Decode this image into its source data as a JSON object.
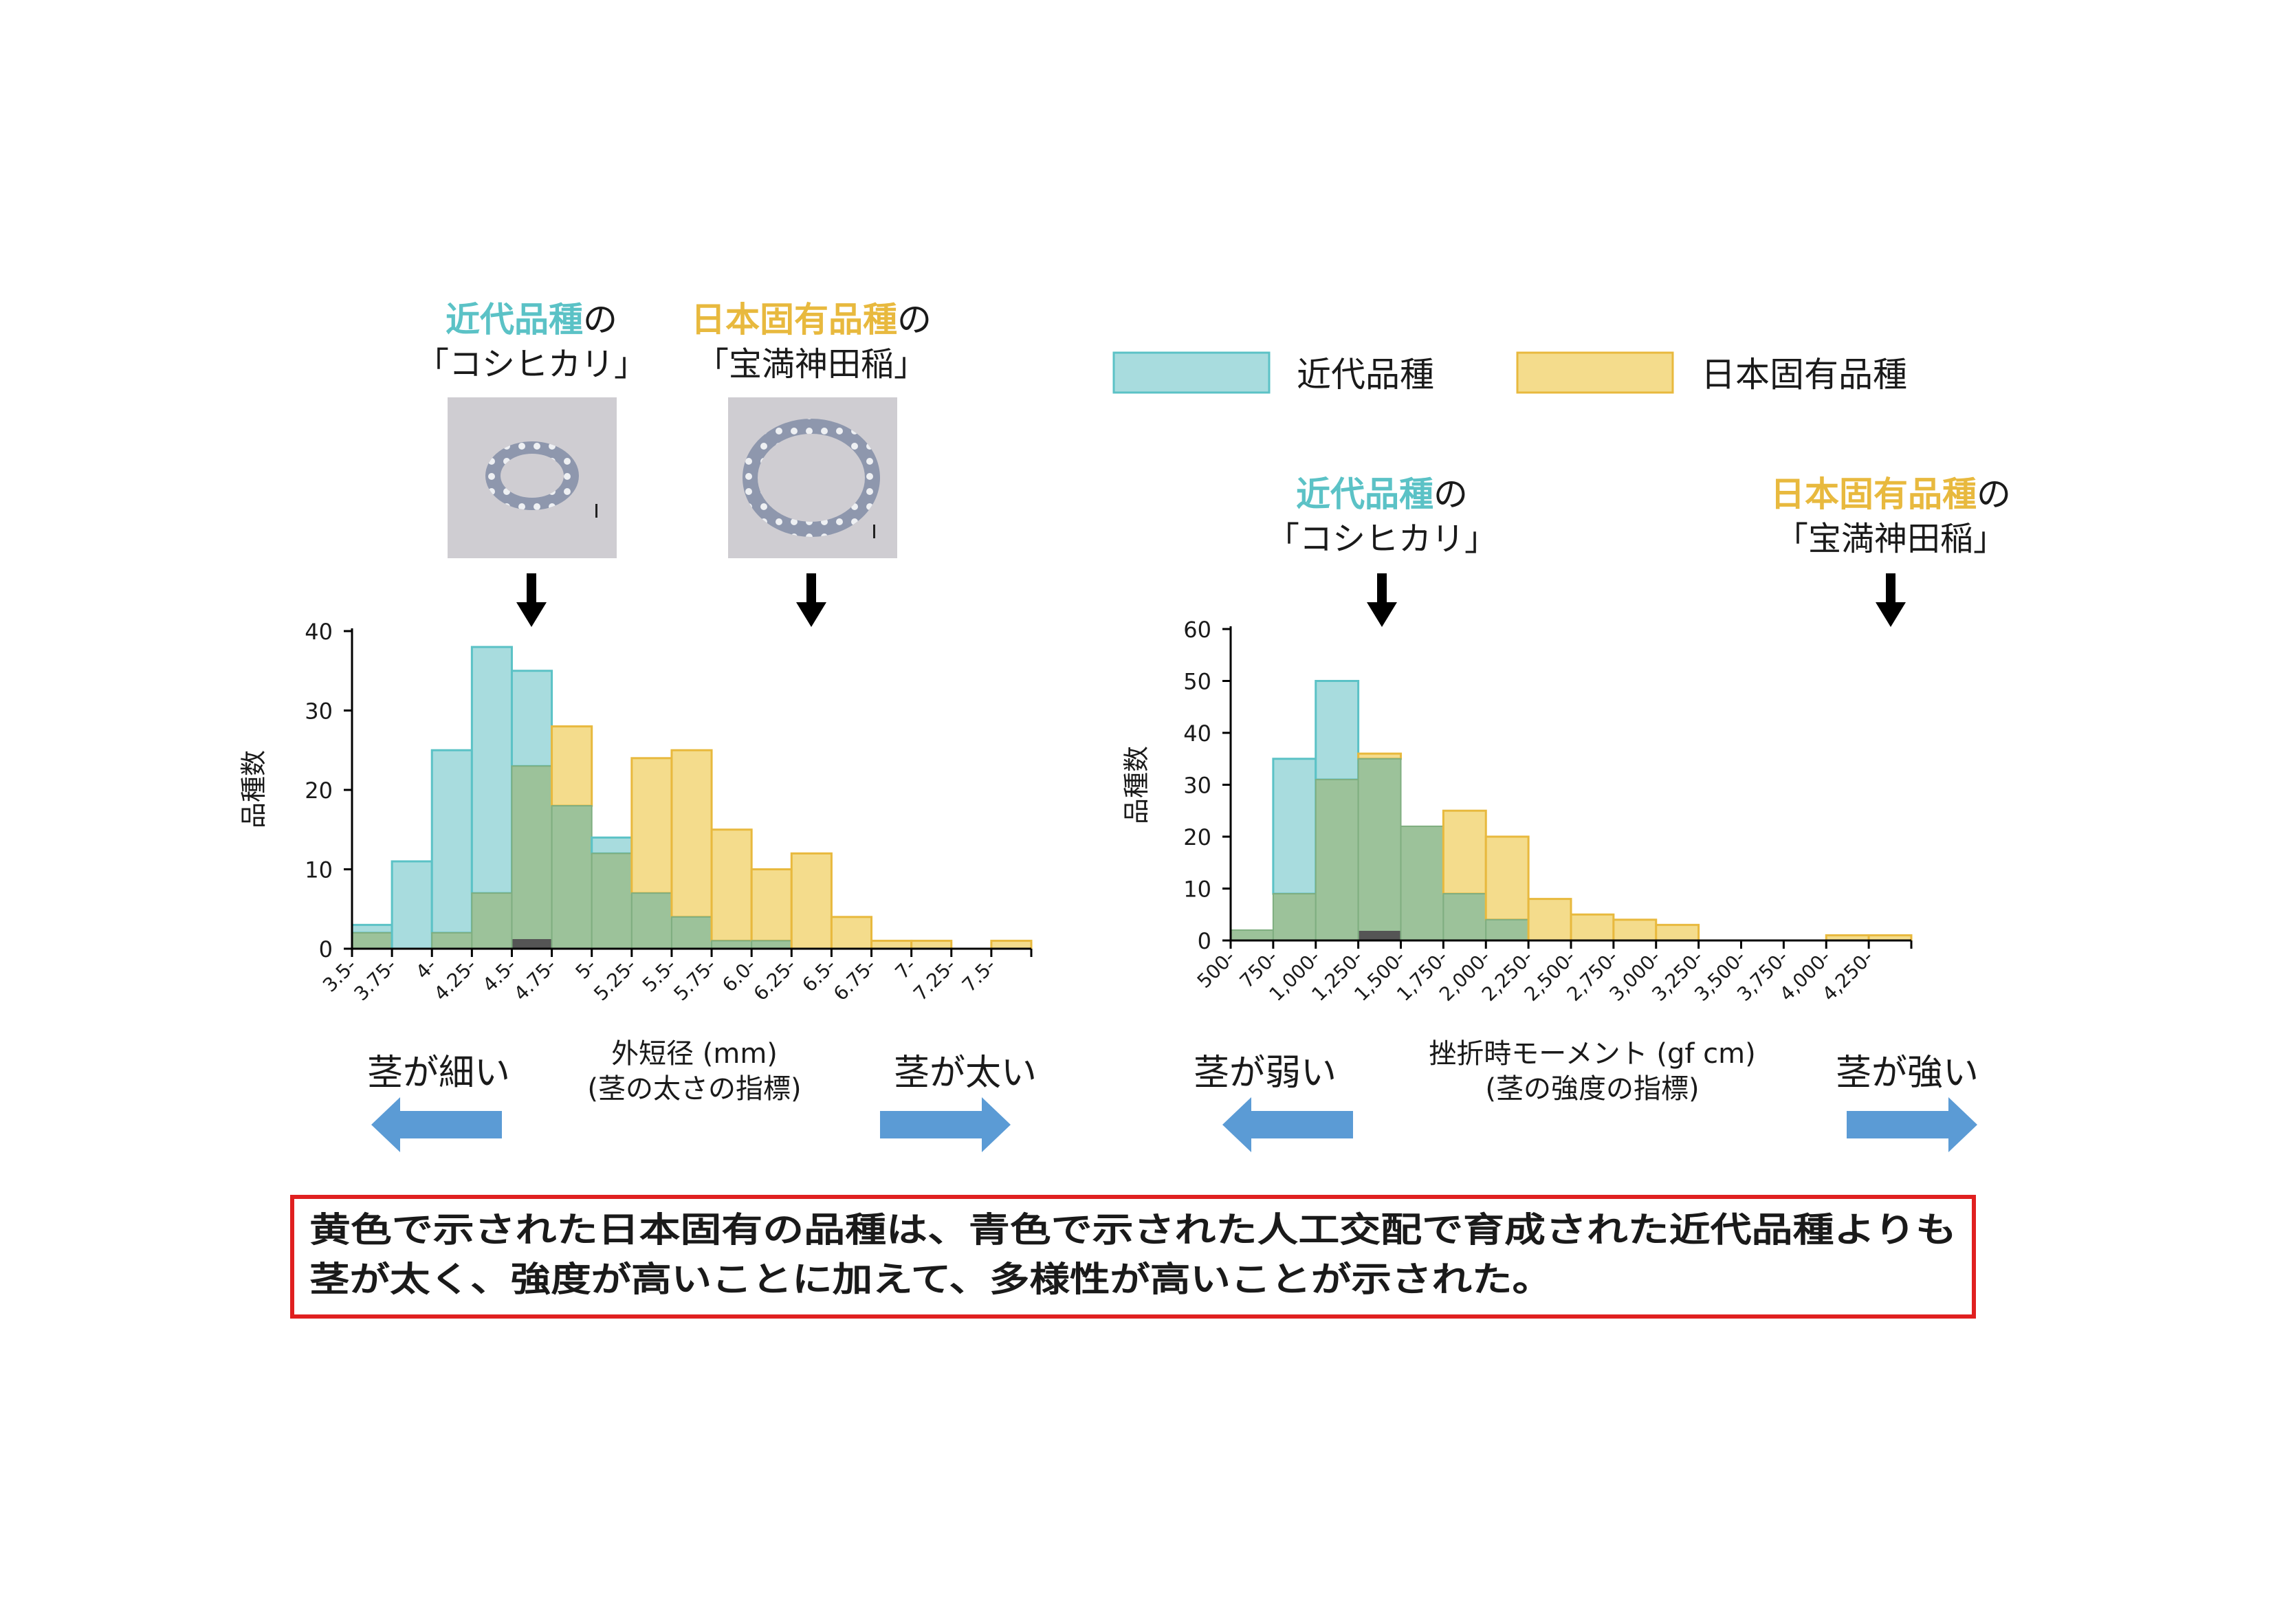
{
  "colors": {
    "modern": "#5bc2c6",
    "modern_fill": "#a8dcde",
    "native": "#e8b93e",
    "native_fill": "#f4dc8c",
    "overlap_fill": "#9cc29a",
    "arrow_blue": "#5b9bd5",
    "note_border": "#e02020",
    "axis": "#000000"
  },
  "legend": {
    "modern": "近代品種",
    "native": "日本固有品種"
  },
  "left_panel": {
    "labels": {
      "modern_variety": "近代品種",
      "modern_no": "の",
      "modern_name": "「コシヒカリ」",
      "native_variety": "日本固有品種",
      "native_no": "の",
      "native_name": "「宝満神田稲」"
    },
    "xlabel": "外短径 (mm)",
    "xlabel_sub": "(茎の太さの指標)",
    "thin_label": "茎が細い",
    "thick_label": "茎が太い"
  },
  "right_panel": {
    "labels": {
      "modern_variety": "近代品種",
      "modern_no": "の",
      "modern_name": "「コシヒカリ」",
      "native_variety": "日本固有品種",
      "native_no": "の",
      "native_name": "「宝満神田稲」"
    },
    "xlabel": "挫折時モーメント (gf cm)",
    "xlabel_sub": "(茎の強度の指標)",
    "weak_label": "茎が弱い",
    "strong_label": "茎が強い"
  },
  "note": {
    "line1": "黄色で示された日本固有の品種は、青色で示された人工交配で育成された近代品種よりも",
    "line2": "茎が太く、強度が高いことに加えて、多様性が高いことが示された。"
  },
  "chart_data": [
    {
      "type": "bar",
      "ylabel": "品種数",
      "ylim": [
        0,
        40
      ],
      "yticks": [
        "0",
        "10",
        "20",
        "30",
        "40"
      ],
      "categories": [
        "3.5-",
        "3.75-",
        "4-",
        "4.25-",
        "4.5-",
        "4.75-",
        "5-",
        "5.25-",
        "5.5-",
        "5.75-",
        "6.0-",
        "6.25-",
        "6.5-",
        "6.75-",
        "7-",
        "7.25-",
        "7.5-"
      ],
      "series": [
        {
          "name": "近代品種",
          "values": [
            3,
            11,
            25,
            38,
            35,
            18,
            14,
            7,
            4,
            1,
            1,
            0,
            0,
            0,
            0,
            0,
            0
          ]
        },
        {
          "name": "日本固有品種",
          "values": [
            2,
            0,
            2,
            7,
            23,
            28,
            12,
            24,
            25,
            15,
            10,
            12,
            4,
            1,
            1,
            0,
            1
          ]
        }
      ],
      "marked": {
        "modern_index": 4,
        "native_index": 11
      }
    },
    {
      "type": "bar",
      "ylabel": "品種数",
      "ylim": [
        0,
        60
      ],
      "yticks": [
        "0",
        "10",
        "20",
        "30",
        "40",
        "50",
        "60"
      ],
      "categories": [
        "500-",
        "750-",
        "1,000-",
        "1,250-",
        "1,500-",
        "1,750-",
        "2,000-",
        "2,250-",
        "2,500-",
        "2,750-",
        "3,000-",
        "3,250-",
        "3,500-",
        "3,750-",
        "4,000-",
        "4,250-"
      ],
      "series": [
        {
          "name": "近代品種",
          "values": [
            2,
            35,
            50,
            35,
            22,
            9,
            4,
            0,
            0,
            0,
            0,
            0,
            0,
            0,
            0,
            0
          ]
        },
        {
          "name": "日本固有品種",
          "values": [
            2,
            9,
            31,
            36,
            22,
            25,
            20,
            8,
            5,
            4,
            3,
            0,
            0,
            0,
            1,
            1
          ]
        }
      ],
      "marked": {
        "modern_index": 3,
        "native_index": 15
      }
    }
  ]
}
